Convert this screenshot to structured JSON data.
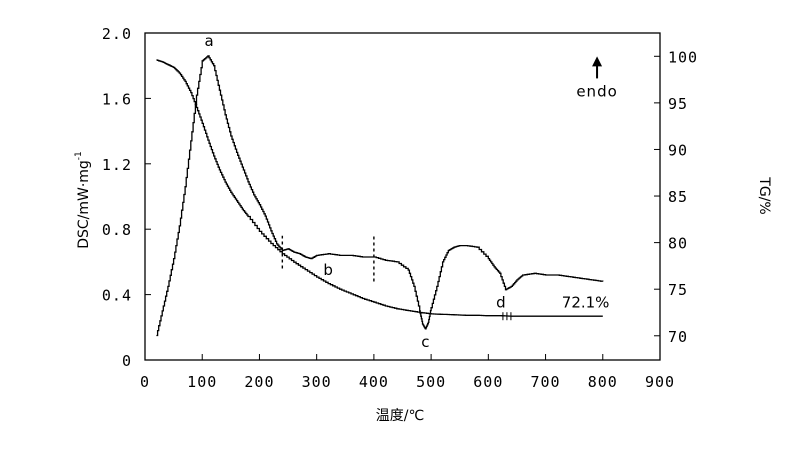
{
  "chart_data": {
    "type": "line",
    "xlabel": "温度/℃",
    "ylabel_left": "DSC/mW·mg",
    "ylabel_left_sup": "-1",
    "ylabel_right": "TG/%",
    "x_ticks": [
      0,
      100,
      200,
      300,
      400,
      500,
      600,
      700,
      800,
      900
    ],
    "x_tick_labels": [
      "0",
      "100",
      "200",
      "300",
      "400",
      "500",
      "600",
      "700",
      "800",
      "900"
    ],
    "xlim": [
      0,
      900
    ],
    "y_left_ticks": [
      0,
      0.4,
      0.8,
      1.2,
      1.6,
      2.0
    ],
    "y_left_tick_labels": [
      "0",
      "0.4",
      "0.8",
      "1.2",
      "1.6",
      "2.0"
    ],
    "ylim_left": [
      0,
      2.0
    ],
    "y_right_ticks": [
      70,
      75,
      80,
      85,
      90,
      95,
      100
    ],
    "y_right_tick_labels": [
      "70",
      "75",
      "80",
      "85",
      "90",
      "95",
      "100"
    ],
    "ylim_right": [
      67.4,
      102.5
    ],
    "grid": false,
    "series": [
      {
        "axis": "left",
        "x": [
          20,
          30,
          40,
          50,
          60,
          70,
          80,
          90,
          100,
          110,
          120,
          130,
          140,
          150,
          160,
          170,
          180,
          190,
          200,
          210,
          220,
          230,
          240,
          250,
          260,
          270,
          280,
          290,
          300,
          320,
          340,
          360,
          380,
          400,
          420,
          440,
          460,
          470,
          480,
          485,
          490,
          495,
          500,
          510,
          520,
          530,
          540,
          550,
          560,
          580,
          600,
          610,
          620,
          630,
          640,
          650,
          660,
          680,
          700,
          720,
          740,
          760,
          780,
          800
        ],
        "values": [
          0.15,
          0.3,
          0.45,
          0.62,
          0.82,
          1.06,
          1.34,
          1.62,
          1.83,
          1.86,
          1.8,
          1.65,
          1.5,
          1.37,
          1.27,
          1.18,
          1.09,
          1.01,
          0.95,
          0.88,
          0.79,
          0.71,
          0.67,
          0.68,
          0.66,
          0.65,
          0.63,
          0.62,
          0.64,
          0.65,
          0.64,
          0.64,
          0.63,
          0.63,
          0.61,
          0.6,
          0.55,
          0.45,
          0.3,
          0.22,
          0.19,
          0.23,
          0.32,
          0.45,
          0.6,
          0.67,
          0.69,
          0.7,
          0.7,
          0.69,
          0.62,
          0.57,
          0.53,
          0.43,
          0.45,
          0.49,
          0.52,
          0.53,
          0.52,
          0.52,
          0.51,
          0.5,
          0.49,
          0.48
        ]
      },
      {
        "axis": "right",
        "x": [
          20,
          30,
          40,
          50,
          60,
          70,
          80,
          90,
          100,
          110,
          120,
          130,
          140,
          150,
          160,
          170,
          180,
          200,
          220,
          240,
          260,
          280,
          300,
          320,
          340,
          360,
          380,
          400,
          420,
          440,
          460,
          480,
          500,
          520,
          540,
          560,
          580,
          600,
          620,
          640,
          660,
          700,
          750,
          800
        ],
        "values": [
          99.6,
          99.4,
          99.1,
          98.8,
          98.2,
          97.3,
          96.1,
          94.5,
          92.8,
          91.0,
          89.3,
          87.8,
          86.5,
          85.4,
          84.5,
          83.6,
          82.8,
          81.2,
          79.9,
          78.8,
          77.9,
          77.1,
          76.3,
          75.6,
          75.0,
          74.5,
          74.0,
          73.6,
          73.2,
          72.9,
          72.7,
          72.5,
          72.35,
          72.3,
          72.25,
          72.2,
          72.2,
          72.15,
          72.15,
          72.1,
          72.1,
          72.1,
          72.1,
          72.1
        ]
      }
    ],
    "annotations": [
      {
        "text": "a",
        "x": 112,
        "y": 1.92,
        "axis": "left"
      },
      {
        "text": "b",
        "x": 320,
        "y": 0.52,
        "axis": "left"
      },
      {
        "text": "c",
        "x": 490,
        "y": 0.08,
        "axis": "left"
      },
      {
        "text": "d",
        "x": 622,
        "y": 0.32,
        "axis": "left"
      },
      {
        "text": "72.1%",
        "x": 770,
        "y": 0.32,
        "axis": "left"
      },
      {
        "text": "endo",
        "x": 790,
        "y": 1.6,
        "axis": "left"
      }
    ],
    "dashed_markers": [
      {
        "x": 240,
        "y_from": 0.56,
        "y_to": 0.76,
        "axis": "left"
      },
      {
        "x": 400,
        "y_from": 0.48,
        "y_to": 0.76,
        "axis": "left"
      }
    ],
    "legend": "none"
  }
}
